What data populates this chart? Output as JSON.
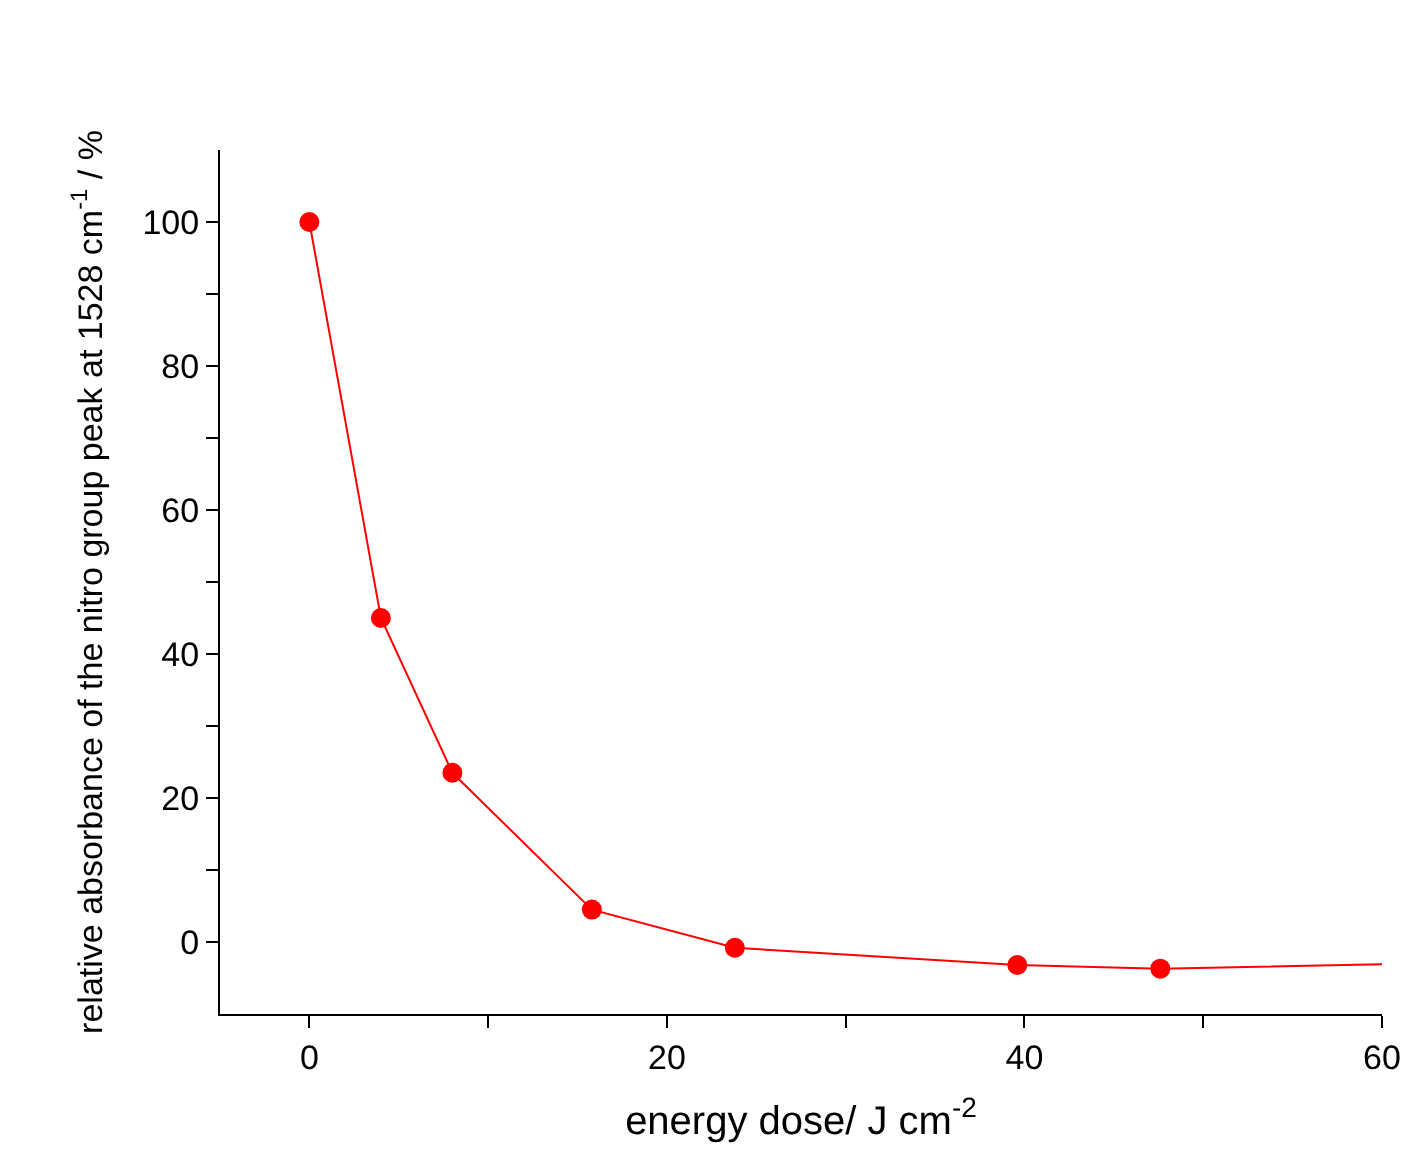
{
  "chart_data": {
    "type": "line",
    "xlabel": "energy dose/ J cm$^{-2}$",
    "ylabel": "relative absorbance of the nitro group peak at 1528 cm$^{-1}$ / %",
    "series": [
      {
        "color": "#ff0000",
        "x": [
          0,
          4,
          8,
          15.8,
          23.8,
          39.6,
          47.6,
          60
        ],
        "values": [
          100,
          45,
          23.5,
          4.5,
          -0.8,
          -3.2,
          -3.7,
          -3.1
        ],
        "marker": "none"
      },
      {
        "type": "scatter",
        "color": "#ff0000",
        "x": [
          0,
          4,
          8,
          15.8,
          23.8,
          39.6,
          47.6
        ],
        "values": [
          100,
          45,
          23.5,
          4.5,
          -0.8,
          -3.2,
          -3.7
        ],
        "marker": "circle"
      }
    ],
    "xlim": [
      -5,
      60
    ],
    "ylim": [
      -10,
      110
    ],
    "xticks": [
      0,
      {
        "value": 10,
        "label": null
      },
      20,
      {
        "value": 30,
        "label": null
      },
      40,
      {
        "value": 50,
        "label": null
      },
      60
    ],
    "yticks": [
      0,
      {
        "value": 10,
        "label": null
      },
      20,
      {
        "value": 30,
        "label": null
      },
      40,
      {
        "value": 50,
        "label": null
      },
      60,
      {
        "value": 70,
        "label": null
      },
      80,
      {
        "value": 90,
        "label": null
      },
      100
    ]
  }
}
